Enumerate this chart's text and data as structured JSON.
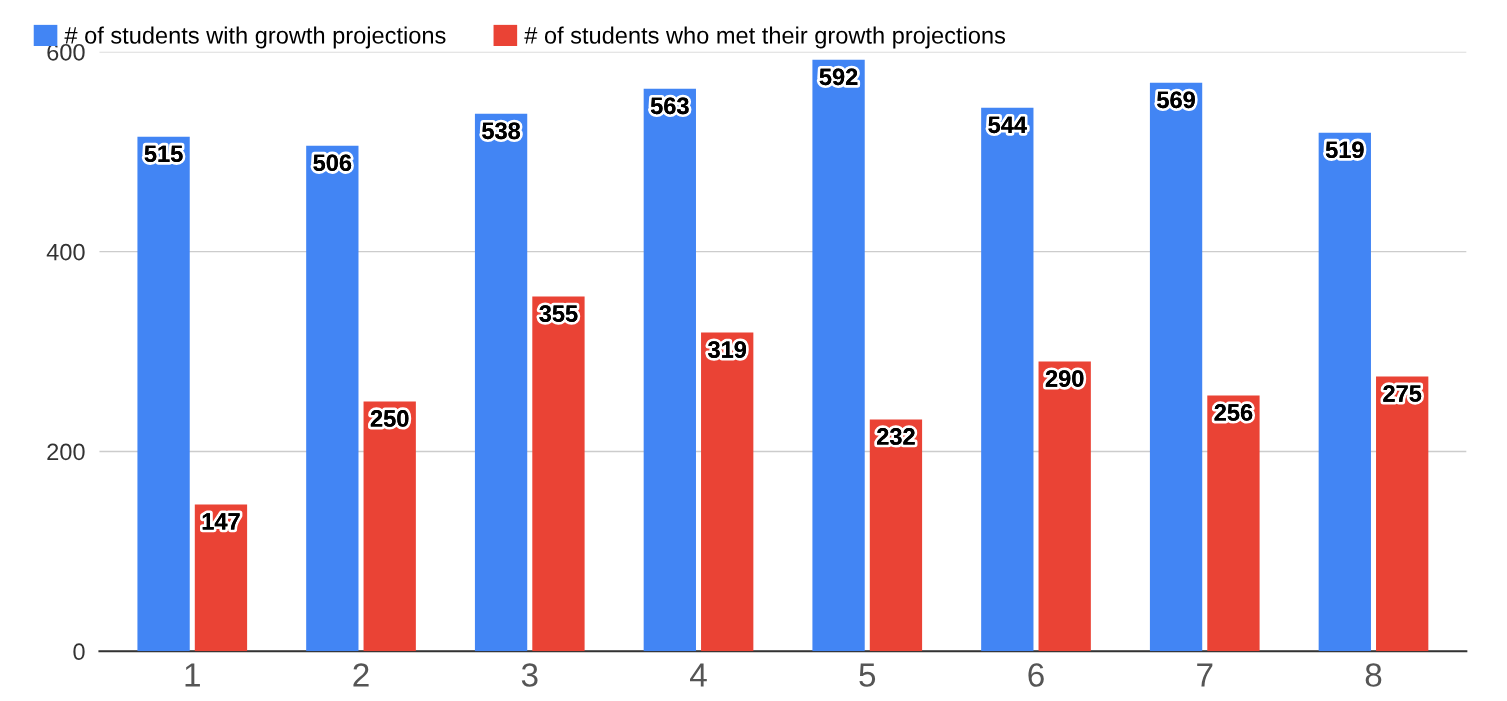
{
  "chart_data": {
    "type": "bar",
    "categories": [
      "1",
      "2",
      "3",
      "4",
      "5",
      "6",
      "7",
      "8"
    ],
    "series": [
      {
        "name": "# of students with growth projections",
        "color": "#4285f4",
        "values": [
          515,
          506,
          538,
          563,
          592,
          544,
          569,
          519
        ]
      },
      {
        "name": "# of students who met their growth projections",
        "color": "#ea4335",
        "values": [
          147,
          250,
          355,
          319,
          232,
          290,
          256,
          275
        ]
      }
    ],
    "ylim": [
      0,
      600
    ],
    "yticks": [
      0,
      200,
      400,
      600
    ],
    "grid": "y",
    "legend": "top left",
    "data_labels": true
  }
}
